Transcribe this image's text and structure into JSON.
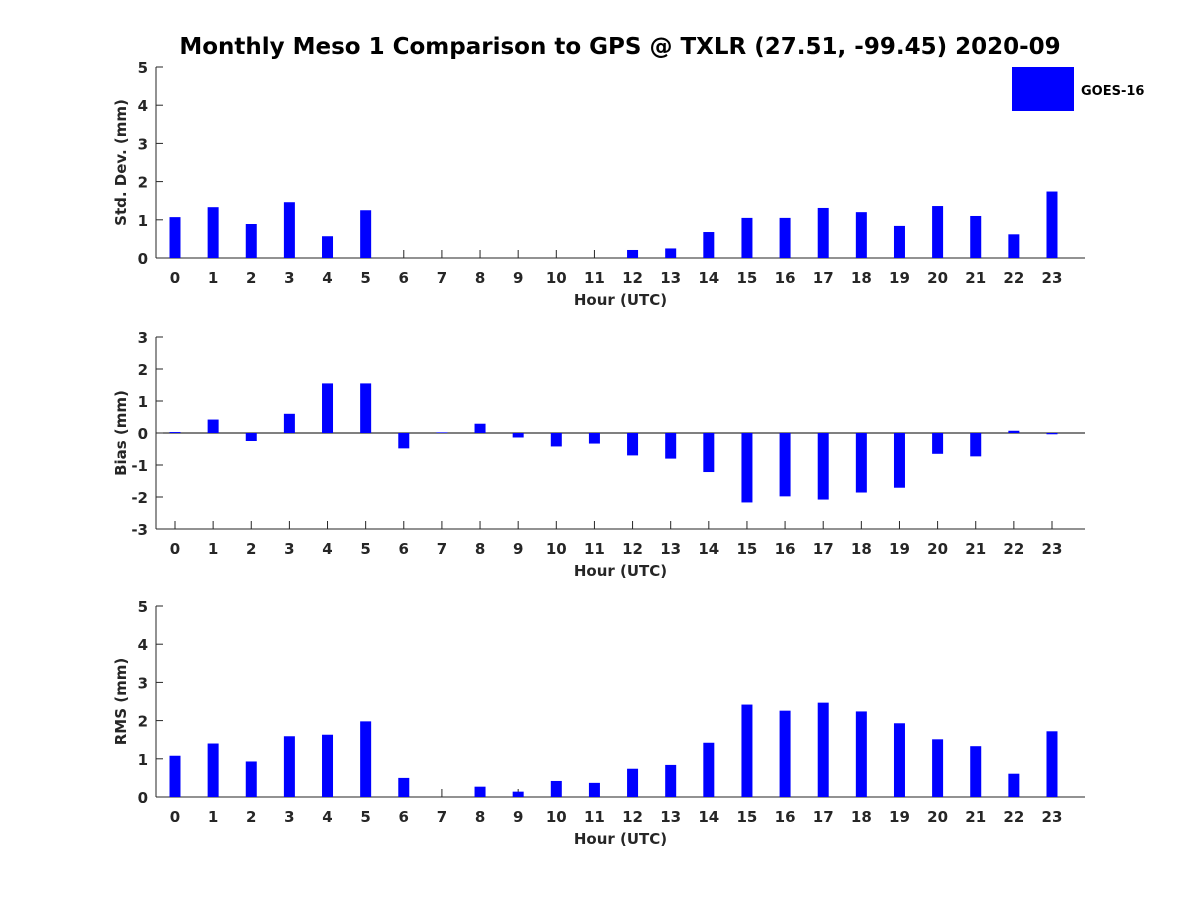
{
  "figure": {
    "title": "Monthly Meso 1 Comparison to GPS @ TXLR (27.51, -99.45) 2020-09",
    "legend": {
      "label": "GOES-16",
      "color": "#0000ff",
      "placement": "top-right"
    }
  },
  "chart_data": [
    {
      "type": "bar",
      "title": "",
      "xlabel": "Hour (UTC)",
      "ylabel": "Std. Dev. (mm)",
      "ylim": [
        0,
        5
      ],
      "yticks": [
        0,
        1,
        2,
        3,
        4,
        5
      ],
      "grid": false,
      "categories": [
        "0",
        "1",
        "2",
        "3",
        "4",
        "5",
        "6",
        "7",
        "8",
        "9",
        "10",
        "11",
        "12",
        "13",
        "14",
        "15",
        "16",
        "17",
        "18",
        "19",
        "20",
        "21",
        "22",
        "23"
      ],
      "series": [
        {
          "name": "GOES-16",
          "color": "#0000ff",
          "values": [
            1.07,
            1.33,
            0.89,
            1.46,
            0.57,
            1.25,
            0,
            0,
            0,
            0,
            0,
            0,
            0.21,
            0.25,
            0.68,
            1.05,
            1.05,
            1.31,
            1.2,
            0.84,
            1.36,
            1.1,
            0.62,
            1.74
          ]
        }
      ]
    },
    {
      "type": "bar",
      "title": "",
      "xlabel": "Hour (UTC)",
      "ylabel": "Bias (mm)",
      "ylim": [
        -3,
        3
      ],
      "yticks": [
        -3,
        -2,
        -1,
        0,
        1,
        2,
        3
      ],
      "grid": false,
      "categories": [
        "0",
        "1",
        "2",
        "3",
        "4",
        "5",
        "6",
        "7",
        "8",
        "9",
        "10",
        "11",
        "12",
        "13",
        "14",
        "15",
        "16",
        "17",
        "18",
        "19",
        "20",
        "21",
        "22",
        "23"
      ],
      "series": [
        {
          "name": "GOES-16",
          "color": "#0000ff",
          "values": [
            0.03,
            0.42,
            -0.25,
            0.6,
            1.55,
            1.55,
            -0.48,
            0.02,
            0.29,
            -0.14,
            -0.42,
            -0.33,
            -0.7,
            -0.8,
            -1.22,
            -2.17,
            -1.98,
            -2.08,
            -1.86,
            -1.71,
            -0.65,
            -0.73,
            0.07,
            -0.04
          ]
        }
      ]
    },
    {
      "type": "bar",
      "title": "",
      "xlabel": "Hour (UTC)",
      "ylabel": "RMS (mm)",
      "ylim": [
        0,
        5
      ],
      "yticks": [
        0,
        1,
        2,
        3,
        4,
        5
      ],
      "grid": false,
      "categories": [
        "0",
        "1",
        "2",
        "3",
        "4",
        "5",
        "6",
        "7",
        "8",
        "9",
        "10",
        "11",
        "12",
        "13",
        "14",
        "15",
        "16",
        "17",
        "18",
        "19",
        "20",
        "21",
        "22",
        "23"
      ],
      "series": [
        {
          "name": "GOES-16",
          "color": "#0000ff",
          "values": [
            1.08,
            1.4,
            0.93,
            1.59,
            1.63,
            1.98,
            0.5,
            0,
            0.27,
            0.14,
            0.42,
            0.37,
            0.74,
            0.84,
            1.42,
            2.42,
            2.26,
            2.47,
            2.24,
            1.93,
            1.51,
            1.33,
            0.61,
            1.72
          ]
        }
      ]
    }
  ]
}
